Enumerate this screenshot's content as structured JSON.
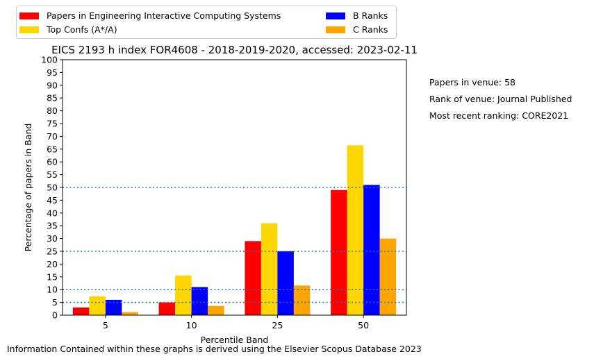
{
  "chart_data": {
    "type": "bar",
    "title": "EICS 2193 h index FOR4608 - 2018-2019-2020, accessed: 2023-02-11",
    "xlabel": "Percentile Band",
    "ylabel": "Percentage of papers in Band",
    "categories": [
      "5",
      "10",
      "25",
      "50"
    ],
    "ylim": [
      0,
      100
    ],
    "yticks": [
      "0",
      "5",
      "10",
      "15",
      "20",
      "25",
      "30",
      "35",
      "40",
      "45",
      "50",
      "55",
      "60",
      "65",
      "70",
      "75",
      "80",
      "85",
      "90",
      "95",
      "100"
    ],
    "series": [
      {
        "name": "Papers in Engineering Interactive Computing Systems",
        "color": "#ff0000",
        "values": [
          3,
          5,
          29,
          49
        ]
      },
      {
        "name": "Top Confs (A*/A)",
        "color": "#ffd700",
        "values": [
          7.4,
          15.5,
          36,
          66.5
        ]
      },
      {
        "name": "B Ranks",
        "color": "#0000ff",
        "values": [
          6,
          11,
          25,
          51
        ]
      },
      {
        "name": "C Ranks",
        "color": "#ffa500",
        "values": [
          1.2,
          3.6,
          11.6,
          30
        ]
      }
    ],
    "reference_lines": [
      5,
      10,
      25,
      50
    ],
    "reference_line_color": "#1f77b4",
    "grid": false,
    "legend_placement": "top, above plot, two columns"
  },
  "side_notes": {
    "papers": "Papers in venue: 58",
    "rank": "Rank of venue: Journal Published",
    "recent": "Most recent ranking: CORE2021"
  },
  "footer": "Information Contained within these graphs is derived using the Elsevier Scopus Database 2023"
}
